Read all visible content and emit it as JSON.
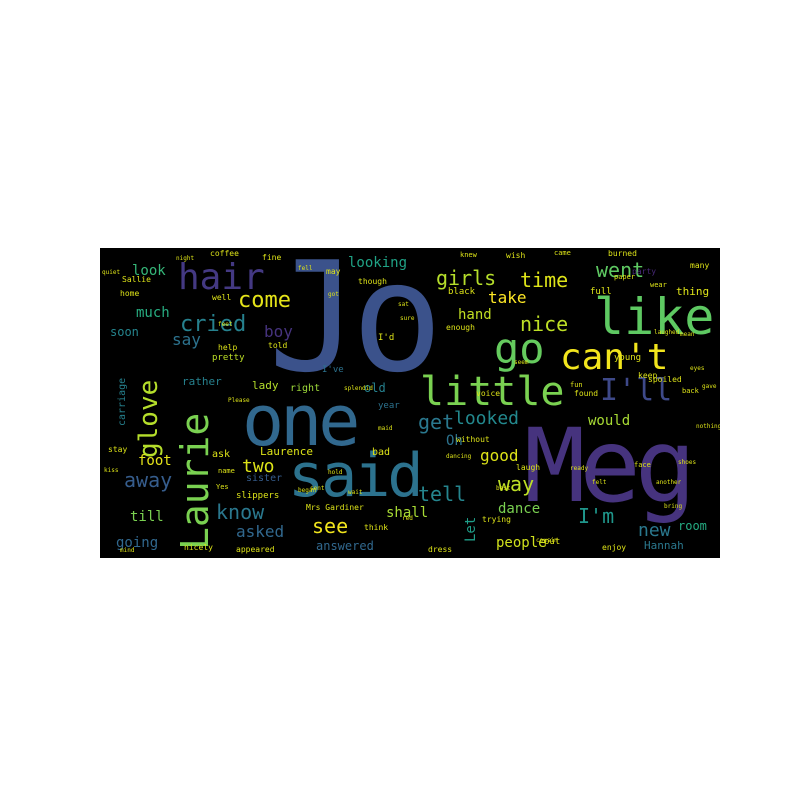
{
  "words": {
    "jo": "Jo",
    "meg": "Meg",
    "one": "one",
    "said": "said",
    "laurie": "Laurie",
    "like": "like",
    "little": "little",
    "go": "go",
    "cant": "can't",
    "hair": "hair",
    "ill": "I'll",
    "glove": "glove",
    "come": "come",
    "cried": "cried",
    "girls": "girls",
    "time": "time",
    "went": "went",
    "nice": "nice",
    "get": "get",
    "looked": "looked",
    "know": "know",
    "see": "see",
    "tell": "tell",
    "away": "away",
    "im": "I'm",
    "looking": "looking",
    "take": "take",
    "much": "much",
    "say": "say",
    "boy": "boy",
    "two": "two",
    "asked": "asked",
    "good": "good",
    "way": "way",
    "would": "would",
    "new": "new",
    "room": "room",
    "people": "people",
    "dance": "dance",
    "shall": "shall",
    "hand": "hand",
    "look": "look",
    "soon": "soon",
    "let": "Let",
    "oh": "Oh",
    "foot": "foot",
    "till": "till",
    "going": "going",
    "answered": "answered",
    "hannah": "Hannah",
    "laurence": "Laurence",
    "sister": "sister",
    "lady": "lady",
    "right": "right",
    "rather": "rather",
    "carriage": "carriage",
    "ive": "I've",
    "old": "old",
    "year": "year",
    "ask": "ask",
    "bad": "bad",
    "slippers": "slippers",
    "pretty": "pretty",
    "coffee": "coffee",
    "fine": "fine",
    "wish": "wish",
    "burned": "burned",
    "sallie": "Sallie",
    "home": "home",
    "well": "well",
    "thing": "thing",
    "party": "party",
    "many": "many",
    "full": "full",
    "black": "black",
    "keep": "keep",
    "found": "found",
    "spoiled": "spoiled",
    "back": "back",
    "young": "young",
    "put": "put",
    "enjoy": "enjoy",
    "nicely": "nicely",
    "appeared": "appeared",
    "dress": "dress",
    "trying": "trying",
    "laugh": "laugh",
    "voice": "voice",
    "enough": "enough",
    "though": "though",
    "may": "may",
    "id": "I'd",
    "told": "told",
    "help": "help",
    "mrsgardiner": "Mrs Gardiner",
    "think": "think",
    "without": "without",
    "stay": "stay",
    "knew": "knew",
    "came": "came",
    "paper": "paper",
    "wear": "wear",
    "fun": "fun",
    "face": "face",
    "name": "name",
    "yes": "Yes",
    "sent": "sent",
    "wait": "wait",
    "please": "Please",
    "quiet": "quiet",
    "fell": "fell",
    "laughed": "laughed",
    "cousin": "cousin",
    "feet": "feet",
    "splendid": "splendid",
    "dancing": "dancing",
    "kiss": "kiss",
    "nothing": "nothing",
    "another": "another",
    "began": "began",
    "maid": "maid",
    "hold": "hold",
    "sat": "sat",
    "seem": "seem",
    "red": "red",
    "best": "best",
    "felt": "felt",
    "night": "night",
    "eyes": "eyes",
    "gave": "gave",
    "got": "got",
    "sure": "sure",
    "shoes": "shoes",
    "bring": "bring",
    "ready": "ready",
    "mean": "mean",
    "mind": "mind"
  }
}
